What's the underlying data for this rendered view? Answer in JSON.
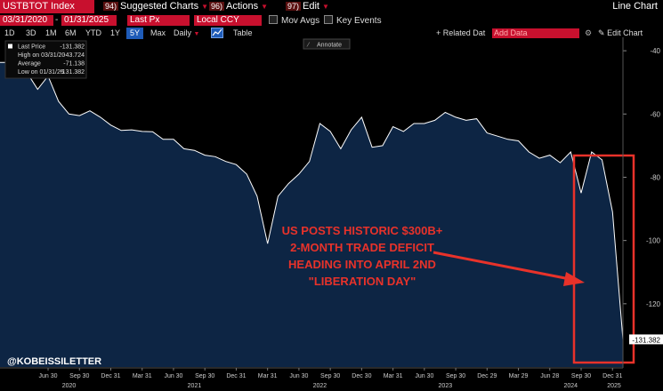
{
  "toolbar": {
    "ticker": "USTBTOT Index",
    "menus": [
      {
        "num": "94)",
        "label": "Suggested Charts"
      },
      {
        "num": "96)",
        "label": "Actions"
      },
      {
        "num": "97)",
        "label": "Edit"
      }
    ],
    "chart_type_label": "Line Chart"
  },
  "settings": {
    "start_date": "03/31/2020",
    "end_date": "01/31/2025",
    "field": "Last Px",
    "currency": "Local CCY",
    "mov_avgs_label": "Mov Avgs",
    "key_events_label": "Key Events"
  },
  "periods": {
    "items": [
      "1D",
      "3D",
      "1M",
      "6M",
      "YTD",
      "1Y",
      "5Y",
      "Max"
    ],
    "selected": "5Y",
    "frequency": "Daily",
    "table_label": "Table",
    "related_label": "+ Related Dat",
    "add_data_placeholder": "Add Data",
    "edit_chart_label": "Edit Chart",
    "annotate_label": "Annotate"
  },
  "legend": [
    {
      "label": "Last Price",
      "value": "-131.382"
    },
    {
      "label": "High on 03/31/20",
      "value": "-43.724"
    },
    {
      "label": "Average",
      "value": "-71.138"
    },
    {
      "label": "Low on 01/31/25",
      "value": "-131.382"
    }
  ],
  "annotation": {
    "lines": [
      "US POSTS HISTORIC $300B+",
      "2-MONTH TRADE DEFICIT",
      "HEADING INTO APRIL 2ND",
      "\"LIBERATION DAY\""
    ],
    "color": "#e8322a"
  },
  "watermark": "@KOBEISSILETTER",
  "last_value_label": "-131.382",
  "colors": {
    "area": "#0d2544",
    "line": "#ffffff",
    "bg": "#000000",
    "accent": "#c8102e"
  },
  "chart_data": {
    "type": "area",
    "x": [
      "2020-03",
      "2020-04",
      "2020-05",
      "2020-06",
      "2020-07",
      "2020-08",
      "2020-09",
      "2020-10",
      "2020-11",
      "2020-12",
      "2021-01",
      "2021-02",
      "2021-03",
      "2021-04",
      "2021-05",
      "2021-06",
      "2021-07",
      "2021-08",
      "2021-09",
      "2021-10",
      "2021-11",
      "2021-12",
      "2022-01",
      "2022-02",
      "2022-03",
      "2022-04",
      "2022-05",
      "2022-06",
      "2022-07",
      "2022-08",
      "2022-09",
      "2022-10",
      "2022-11",
      "2022-12",
      "2023-01",
      "2023-02",
      "2023-03",
      "2023-04",
      "2023-05",
      "2023-06",
      "2023-07",
      "2023-08",
      "2023-09",
      "2023-10",
      "2023-11",
      "2023-12",
      "2024-01",
      "2024-02",
      "2024-03",
      "2024-04",
      "2024-05",
      "2024-06",
      "2024-07",
      "2024-08",
      "2024-09",
      "2024-10",
      "2024-11",
      "2024-12",
      "2025-01"
    ],
    "values": [
      -43.7,
      -47,
      -52.2,
      -48,
      -56,
      -60,
      -60.5,
      -59,
      -61,
      -63.5,
      -65.2,
      -65,
      -65.5,
      -65.6,
      -68,
      -68,
      -71,
      -71.5,
      -73,
      -73.5,
      -75,
      -76,
      -79,
      -86,
      -101,
      -86,
      -82,
      -79,
      -75,
      -63,
      -65.5,
      -71,
      -65,
      -61,
      -70.5,
      -70,
      -64,
      -65.5,
      -63,
      -63,
      -62,
      -59.5,
      -61,
      -62,
      -61.5,
      -66,
      -67,
      -68,
      -68.5,
      -72,
      -74,
      -73,
      -75.4,
      -72,
      -85,
      -72,
      -74.5,
      -91,
      -131.4
    ],
    "x_ticks": [
      {
        "label": "Jun 30",
        "x": "2020-06"
      },
      {
        "label": "Sep 30",
        "x": "2020-09"
      },
      {
        "label": "Dec 31",
        "x": "2020-12"
      },
      {
        "label": "Mar 31",
        "x": "2021-03"
      },
      {
        "label": "Jun 30",
        "x": "2021-06"
      },
      {
        "label": "Sep 30",
        "x": "2021-09"
      },
      {
        "label": "Dec 31",
        "x": "2021-12"
      },
      {
        "label": "Mar 31",
        "x": "2022-03"
      },
      {
        "label": "Jun 30",
        "x": "2022-06"
      },
      {
        "label": "Sep 30",
        "x": "2022-09"
      },
      {
        "label": "Dec 30",
        "x": "2022-12"
      },
      {
        "label": "Mar 31",
        "x": "2023-03"
      },
      {
        "label": "Jun 30",
        "x": "2023-06"
      },
      {
        "label": "Sep 30",
        "x": "2023-09"
      },
      {
        "label": "Dec 29",
        "x": "2023-12"
      },
      {
        "label": "Mar 29",
        "x": "2024-03"
      },
      {
        "label": "Jun 28",
        "x": "2024-06"
      },
      {
        "label": "Sep 30",
        "x": "2024-09"
      },
      {
        "label": "Dec 31",
        "x": "2024-12"
      }
    ],
    "year_labels": [
      {
        "label": "2020",
        "x": "2020-08"
      },
      {
        "label": "2021",
        "x": "2021-08"
      },
      {
        "label": "2022",
        "x": "2022-08"
      },
      {
        "label": "2023",
        "x": "2023-08"
      },
      {
        "label": "2024",
        "x": "2024-08"
      },
      {
        "label": "2025",
        "x": "2025-01"
      }
    ],
    "y_ticks": [
      -40,
      -60,
      -80,
      -100,
      -120
    ],
    "ylim": [
      -140,
      -38
    ],
    "grid": false,
    "highlight_box": {
      "x_start": "2024-09",
      "x_end": "2025-01"
    }
  }
}
